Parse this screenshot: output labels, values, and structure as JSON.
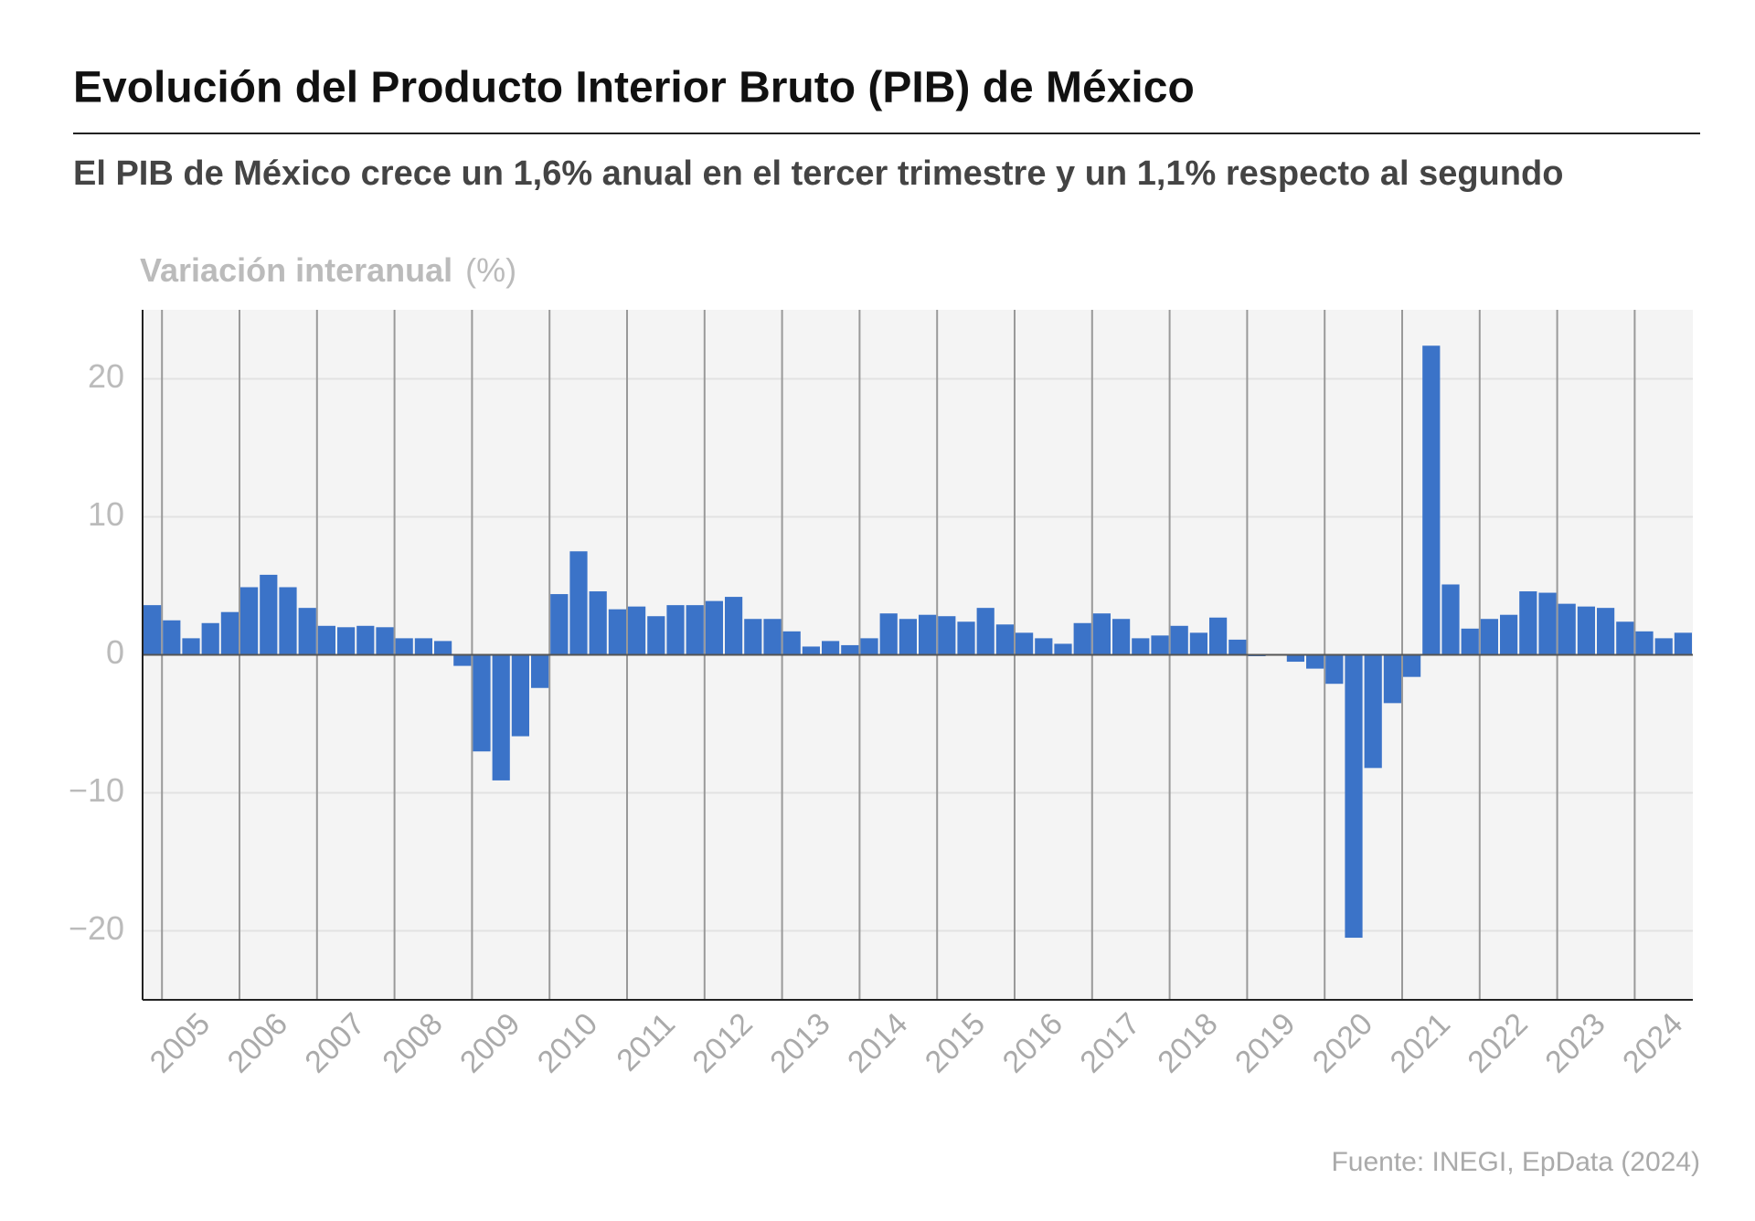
{
  "chart_data": {
    "type": "bar",
    "title": "Evolución del Producto Interior Bruto (PIB) de México",
    "subtitle": "El PIB de México crece un 1,6% anual en el tercer trimestre y un 1,1% respecto al segundo",
    "y_label": "Variación interanual",
    "y_unit": "(%)",
    "source": "Fuente: INEGI, EpData (2024)",
    "color": "#3b73c8",
    "grid": true,
    "ylim": [
      -25,
      25
    ],
    "yticks": [
      {
        "value": -20,
        "label": "−20"
      },
      {
        "value": -10,
        "label": "−10"
      },
      0,
      10,
      20
    ],
    "categories": [
      null,
      "2005",
      null,
      null,
      null,
      "2006",
      null,
      null,
      null,
      "2007",
      null,
      null,
      null,
      "2008",
      null,
      null,
      null,
      "2009",
      null,
      null,
      null,
      "2010",
      null,
      null,
      null,
      "2011",
      null,
      null,
      null,
      "2012",
      null,
      null,
      null,
      "2013",
      null,
      null,
      null,
      "2014",
      null,
      null,
      null,
      "2015",
      null,
      null,
      null,
      "2016",
      null,
      null,
      null,
      "2017",
      null,
      null,
      null,
      "2018",
      null,
      null,
      null,
      "2019",
      null,
      null,
      null,
      "2020",
      null,
      null,
      null,
      "2021",
      null,
      null,
      null,
      "2022",
      null,
      null,
      null,
      "2023",
      null,
      null,
      null,
      "2024",
      null,
      null
    ],
    "values": [
      3.6,
      2.5,
      1.2,
      2.3,
      3.1,
      4.9,
      5.8,
      4.9,
      3.4,
      2.1,
      2.0,
      2.1,
      2.0,
      1.2,
      1.2,
      1.0,
      -0.8,
      -7.0,
      -9.1,
      -5.9,
      -2.4,
      4.4,
      7.5,
      4.6,
      3.3,
      3.5,
      2.8,
      3.6,
      3.6,
      3.9,
      4.2,
      2.6,
      2.6,
      1.7,
      0.6,
      1.0,
      0.7,
      1.2,
      3.0,
      2.6,
      2.9,
      2.8,
      2.4,
      3.4,
      2.2,
      1.6,
      1.2,
      0.8,
      2.3,
      3.0,
      2.6,
      1.2,
      1.4,
      2.1,
      1.6,
      2.7,
      1.1,
      -0.1,
      0.0,
      -0.5,
      -1.0,
      -2.1,
      -20.5,
      -8.2,
      -3.5,
      -1.6,
      22.4,
      5.1,
      1.9,
      2.6,
      2.9,
      4.6,
      4.5,
      3.7,
      3.5,
      3.4,
      2.4,
      1.7,
      1.2,
      1.6
    ]
  }
}
